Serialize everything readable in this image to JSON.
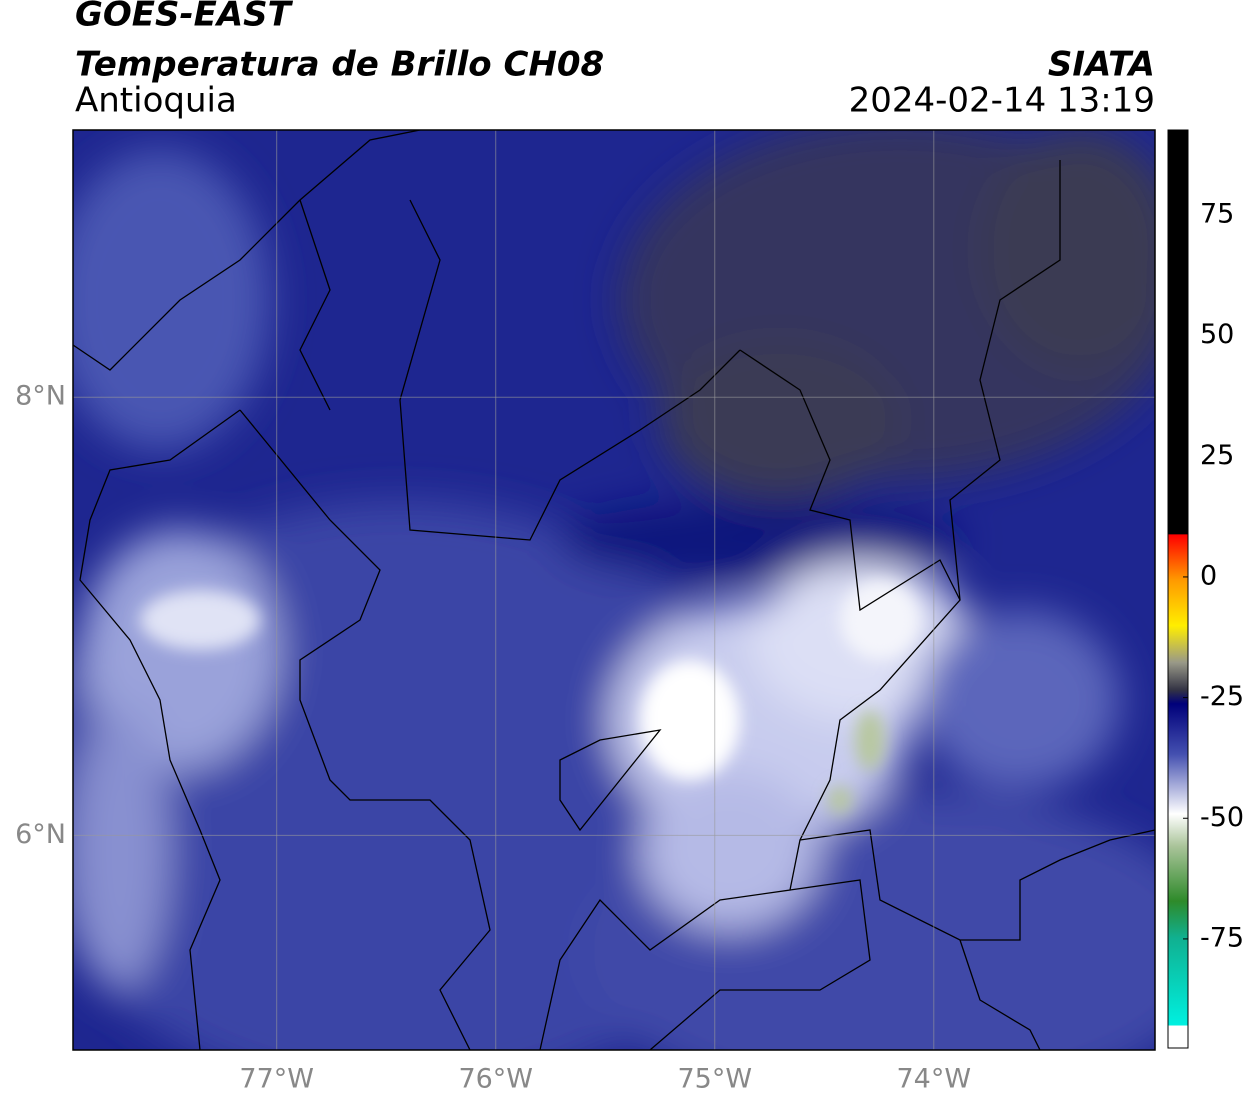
{
  "header": {
    "title": "GOES-EAST",
    "subtitle": "Temperatura de Brillo CH08",
    "region": "Antioquia",
    "source": "SIATA",
    "timestamp": "2024-02-14 13:19"
  },
  "map": {
    "lon_lim": [
      -77.93,
      -72.99
    ],
    "lat_lim": [
      5.02,
      9.22
    ],
    "lon_ticks": [
      {
        "value": -77,
        "label": "77°W"
      },
      {
        "value": -76,
        "label": "76°W"
      },
      {
        "value": -75,
        "label": "75°W"
      },
      {
        "value": -74,
        "label": "74°W"
      }
    ],
    "lat_ticks": [
      {
        "value": 8,
        "label": "8°N"
      },
      {
        "value": 6,
        "label": "6°N"
      }
    ],
    "grid": true
  },
  "colorbar": {
    "lim": [
      -97.6,
      92.6
    ],
    "ticks": [
      75,
      50,
      25,
      0,
      -25,
      -50,
      -75
    ]
  }
}
